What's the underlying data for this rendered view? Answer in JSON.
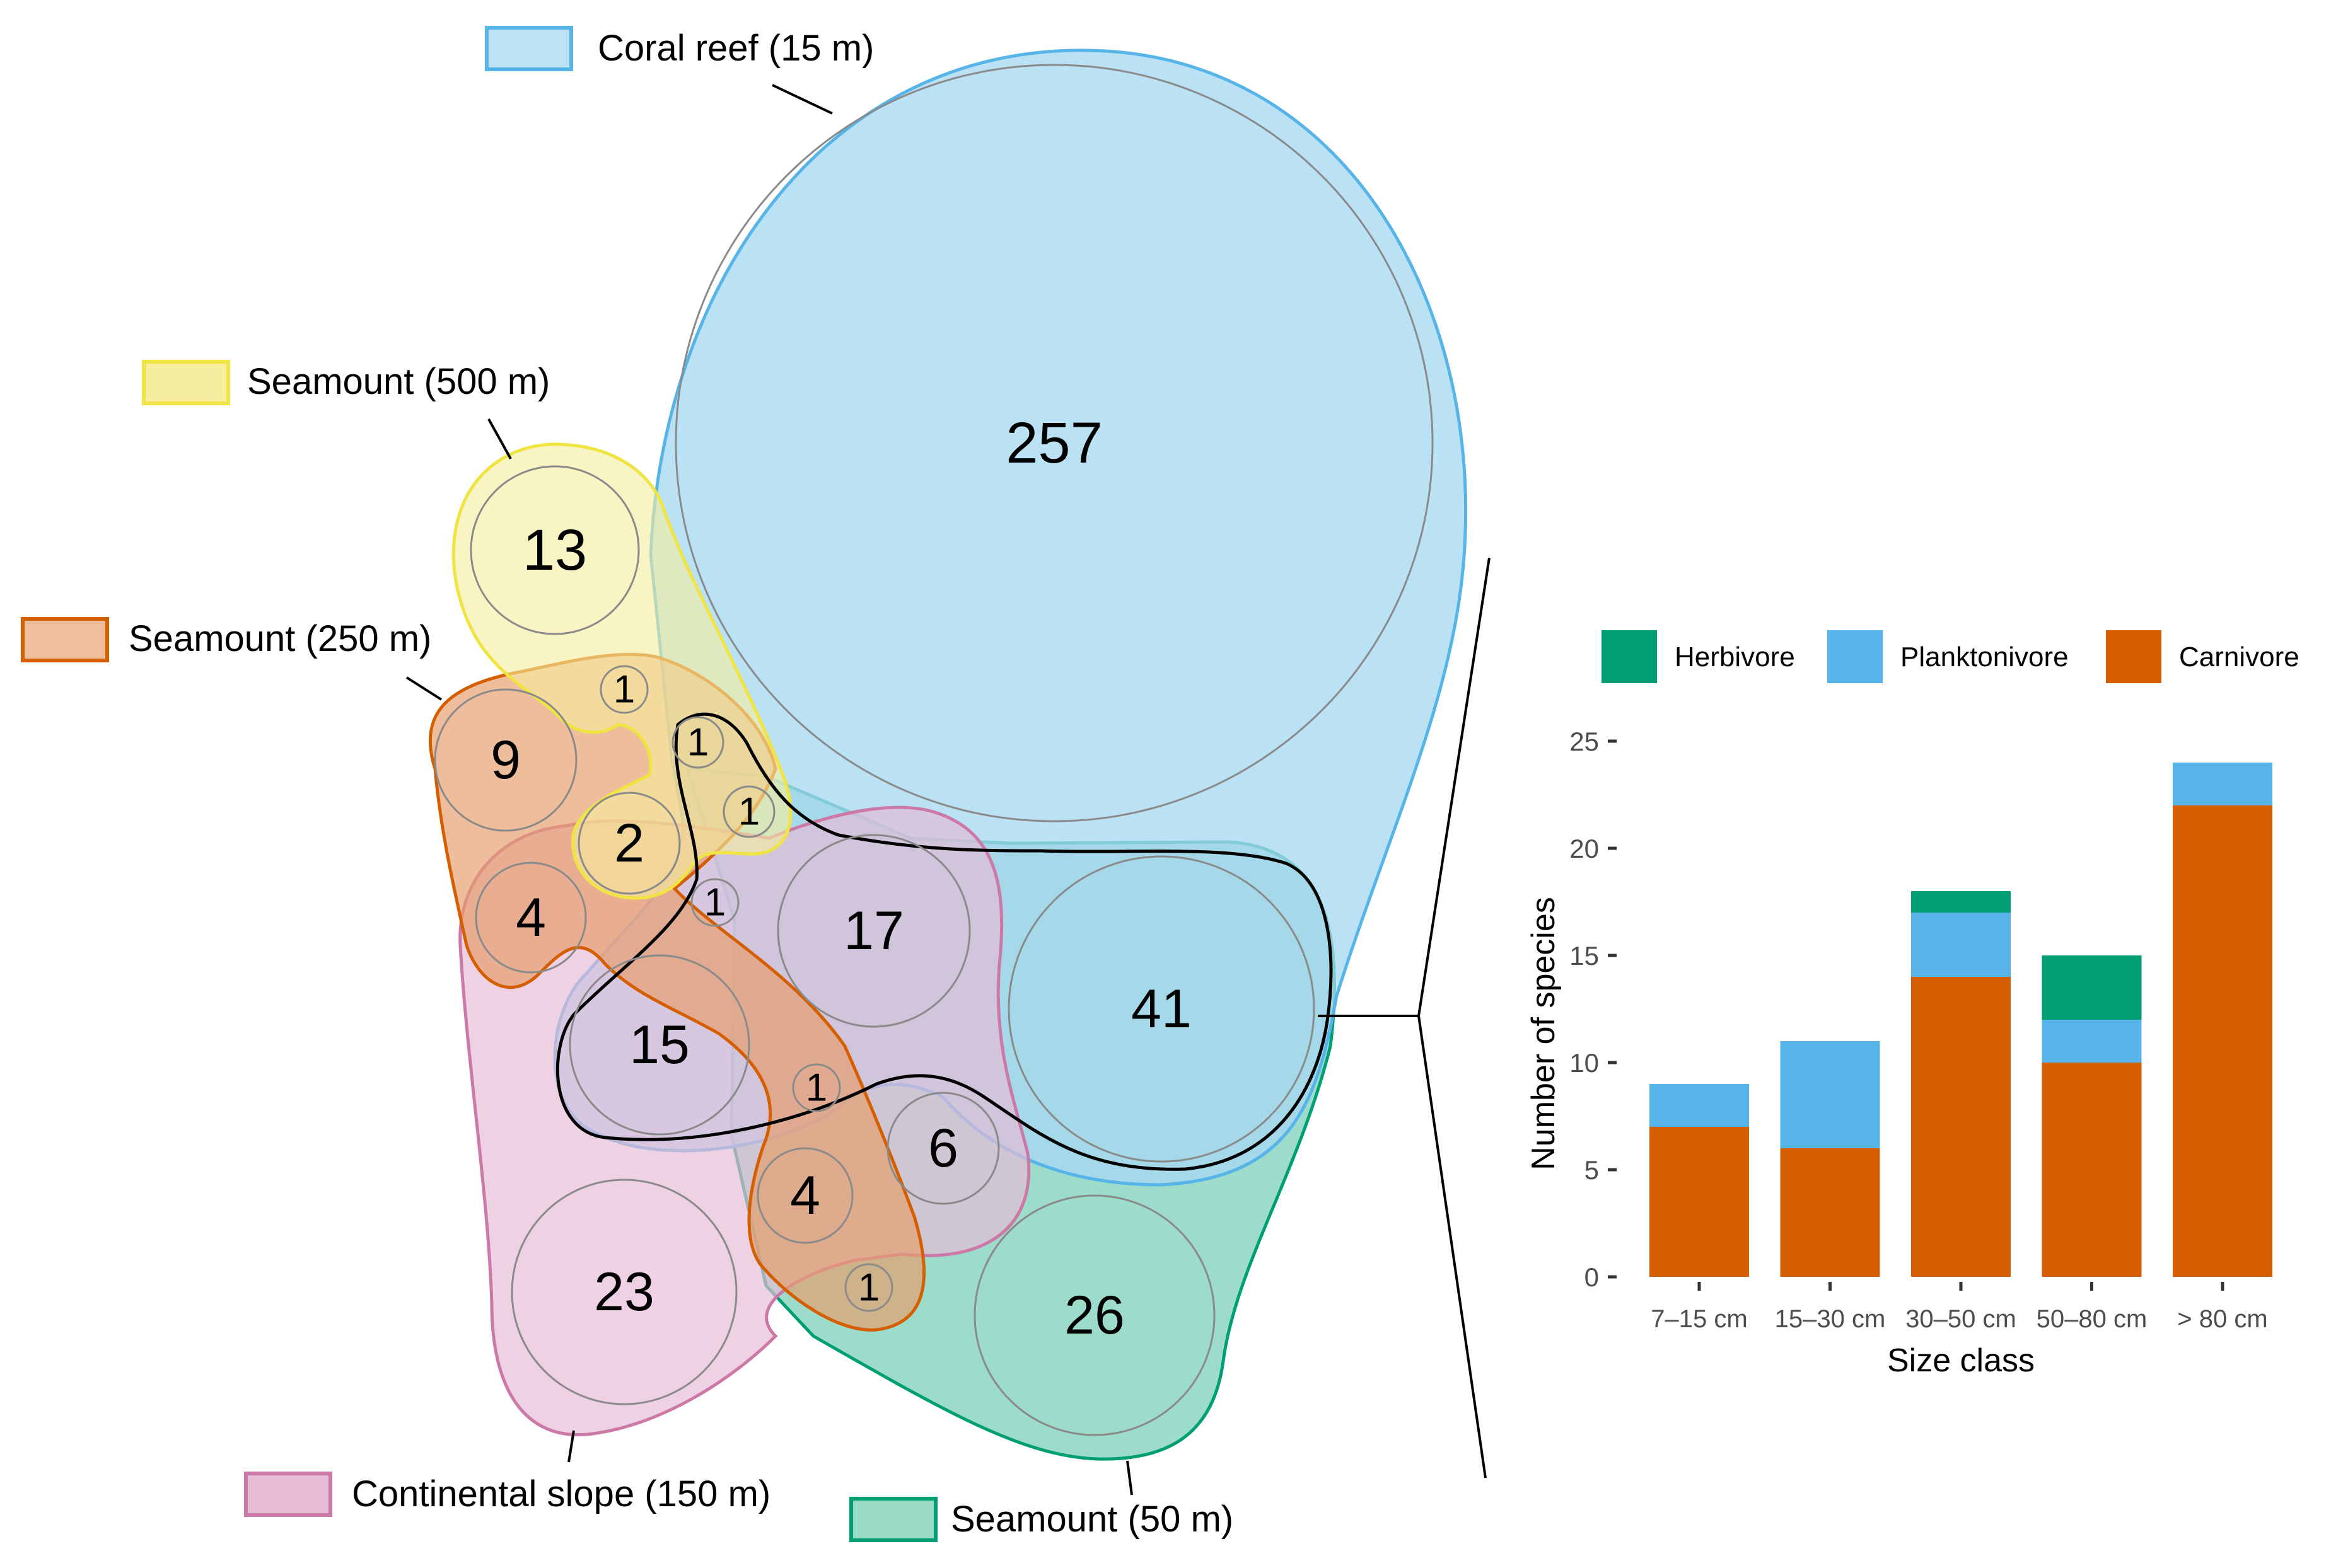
{
  "euler_diagram": {
    "legend": {
      "coral_reef": "Coral reef (15 m)",
      "seamount_500": "Seamount (500 m)",
      "seamount_250": "Seamount (250 m)",
      "continental_slope": "Continental slope (150 m)",
      "seamount_50": "Seamount (50 m)"
    },
    "colors": {
      "coral_reef": {
        "fill": "#bde2f5",
        "stroke": "#56b4e9"
      },
      "seamount_500": {
        "fill": "#f8f0ab",
        "stroke": "#f0e442"
      },
      "seamount_250": {
        "fill": "#e69e6b",
        "stroke": "#d55e00"
      },
      "continental_slope": {
        "fill": "#e6bbd6",
        "stroke": "#cc79a7"
      },
      "seamount_50": {
        "fill": "#5cc4a6",
        "stroke": "#009e73"
      }
    },
    "counts": {
      "coral_reef_only": "257",
      "seamount_500_only": "13",
      "seamount_250_only": "9",
      "continental_slope_only": "23",
      "seamount_50_only": "26",
      "reef_s50_shared": "41",
      "reef_slope_s50_shared": "17",
      "reef_slope_shared": "15",
      "slope_s50_shared": "6",
      "s250_slope_shared": "4",
      "s250_slope_s50_shared": "4",
      "s500_s250_slope_shared": "2",
      "s500_s250_shared": "1",
      "s500_reef_s250_shared": "1",
      "s500_reef_s50_shared": "1",
      "s250_reef_slope_shared": "1",
      "s250_reef_slope_s50_shared": "1",
      "s250_s50_shared": "1"
    }
  },
  "chart_data": {
    "type": "bar",
    "stacked": true,
    "categories": [
      "7–15 cm",
      "15–30 cm",
      "30–50 cm",
      "50–80 cm",
      "> 80 cm"
    ],
    "series": [
      {
        "name": "Carnivore",
        "color": "#d55e00",
        "values": [
          7,
          6,
          14,
          10,
          22
        ]
      },
      {
        "name": "Planktonivore",
        "color": "#56b4e9",
        "values": [
          2,
          5,
          3,
          2,
          2
        ]
      },
      {
        "name": "Herbivore",
        "color": "#009e73",
        "values": [
          0,
          0,
          1,
          3,
          0
        ]
      }
    ],
    "legend_order": [
      "Herbivore",
      "Planktonivore",
      "Carnivore"
    ],
    "legend_position": "top",
    "xlabel": "Size class",
    "ylabel": "Number of species",
    "ylim": [
      0,
      25
    ],
    "yticks": [
      0,
      5,
      10,
      15,
      20,
      25
    ],
    "grid": false
  }
}
